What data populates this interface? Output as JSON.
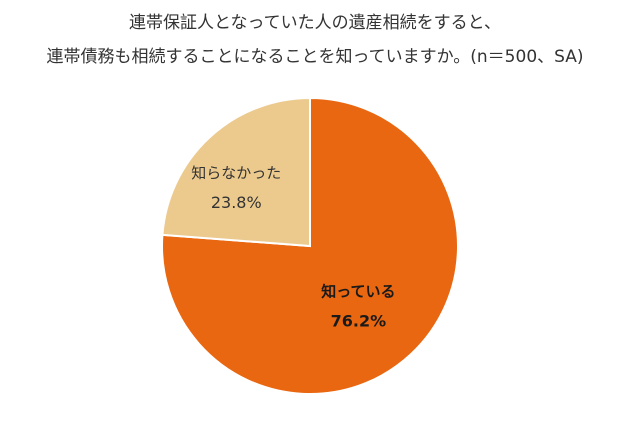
{
  "chart_data": {
    "type": "pie",
    "title_lines": [
      "連帯保証人となっていた人の遺産相続をすると、",
      "連帯債務も相続することになることを知っていますか。(n＝500、SA)"
    ],
    "slices": [
      {
        "label": "知っている",
        "value": 76.2,
        "value_label": "76.2%",
        "color": "#e96710",
        "text_color": "#1a1a1a",
        "bold": true
      },
      {
        "label": "知らなかった",
        "value": 23.8,
        "value_label": "23.8%",
        "color": "#ecca8e",
        "text_color": "#333333",
        "bold": false
      }
    ],
    "start_angle_deg": 0,
    "direction": "clockwise"
  }
}
